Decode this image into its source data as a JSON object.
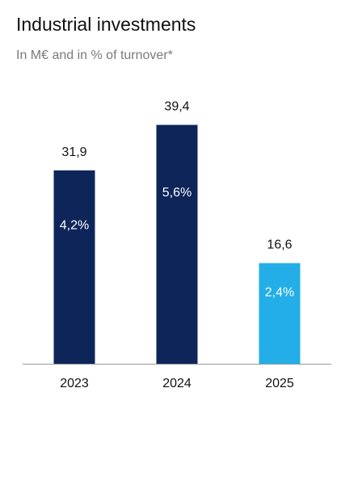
{
  "title": "Industrial investments",
  "subtitle": "In M€ and in % of turnover*",
  "colors": {
    "dark_bar": "#0d2559",
    "highlight_bar": "#23aee8",
    "axis": "#999999",
    "inner_label": "#ffffff",
    "text": "#111111"
  },
  "chart_data": {
    "type": "bar",
    "title": "Industrial investments",
    "subtitle": "In M€ and in % of turnover*",
    "categories": [
      "2023",
      "2024",
      "2025"
    ],
    "values": [
      31.9,
      39.4,
      16.6
    ],
    "value_labels": [
      "31,9",
      "39,4",
      "16,6"
    ],
    "percent_labels": [
      "4,2%",
      "5,6%",
      "2,4%"
    ],
    "bar_colors": [
      "#0d2559",
      "#0d2559",
      "#23aee8"
    ],
    "ylim": [
      0,
      40
    ],
    "grid": false,
    "legend": "none"
  }
}
